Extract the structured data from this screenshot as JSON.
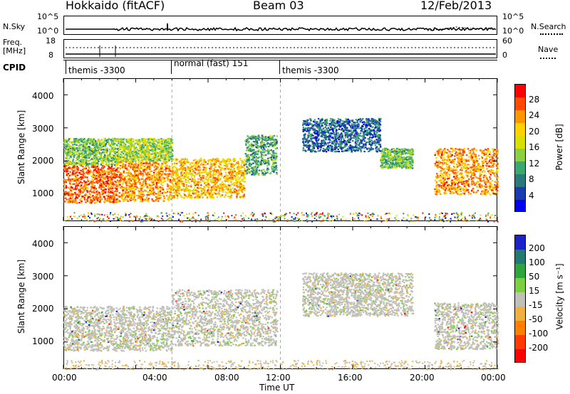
{
  "header": {
    "station": "Hokkaido (fitACF)",
    "beam": "Beam 03",
    "date": "12/Feb/2013"
  },
  "top_panels": {
    "nsky_label": "N.Sky",
    "nsky_ticks": [
      "10^5",
      "10^0"
    ],
    "nsearch_label": "N.Search",
    "nsearch_ticks": [
      "10^5",
      "10^0"
    ],
    "freq_label": "Freq.",
    "freq_unit": "[MHz]",
    "freq_ticks": [
      "18",
      "8"
    ],
    "nave_label": "Nave",
    "nave_ticks": [
      "60",
      "0"
    ],
    "cpid_label": "CPID",
    "cpid_segments": [
      {
        "start_h": 0,
        "end_h": 6,
        "label": "themis -3300"
      },
      {
        "start_h": 6,
        "end_h": 12,
        "label": "normal (fast) 151"
      },
      {
        "start_h": 12,
        "end_h": 24,
        "label": "themis -3300"
      }
    ]
  },
  "axes": {
    "xlabel": "Time UT",
    "xticks": [
      "00:00",
      "04:00",
      "08:00",
      "12:00",
      "16:00",
      "20:00",
      "00:00"
    ],
    "xlim_h": [
      0,
      24
    ],
    "ylabel": "Slant Range [km]",
    "yticks": [
      "1000",
      "2000",
      "3000",
      "4000"
    ],
    "ylim_km": [
      180,
      4500
    ]
  },
  "power_colorbar": {
    "label": "Power [dB]",
    "ticks": [
      "28",
      "24",
      "20",
      "16",
      "12",
      "8",
      "4"
    ],
    "colors": [
      "#ff0000",
      "#ff4a00",
      "#ff9600",
      "#ffd200",
      "#d8e000",
      "#8ad040",
      "#3aa870",
      "#2a7a7a",
      "#1a3ab0",
      "#0000f0"
    ]
  },
  "velocity_colorbar": {
    "label": "Velocity [m s⁻¹]",
    "ticks": [
      "200",
      "100",
      "50",
      "15",
      "-15",
      "-50",
      "-100",
      "-200"
    ],
    "colors": [
      "#1a22c8",
      "#227a70",
      "#2ea63a",
      "#7ad040",
      "#c0c0b8",
      "#f0b040",
      "#ff8000",
      "#ff3a00",
      "#ff0000"
    ]
  },
  "chart_data": [
    {
      "type": "heatmap",
      "title": "",
      "xlabel": "Time UT",
      "ylabel": "Slant Range [km]",
      "quantity": "Power [dB]",
      "xlim_h": [
        0,
        24
      ],
      "ylim_km": [
        180,
        4500
      ],
      "scatter_regions": [
        {
          "t0": 0.0,
          "t1": 3.0,
          "r_lo": 750,
          "r_hi": 1900,
          "val": 26
        },
        {
          "t0": 0.0,
          "t1": 3.0,
          "r_lo": 1900,
          "r_hi": 2700,
          "val": 14
        },
        {
          "t0": 3.0,
          "t1": 6.0,
          "r_lo": 800,
          "r_hi": 2000,
          "val": 24
        },
        {
          "t0": 3.0,
          "t1": 6.0,
          "r_lo": 2000,
          "r_hi": 2700,
          "val": 16
        },
        {
          "t0": 6.0,
          "t1": 10.0,
          "r_lo": 900,
          "r_hi": 2100,
          "val": 22
        },
        {
          "t0": 10.0,
          "t1": 11.8,
          "r_lo": 1600,
          "r_hi": 2800,
          "val": 12
        },
        {
          "t0": 13.2,
          "t1": 17.5,
          "r_lo": 2300,
          "r_hi": 3300,
          "val": 8
        },
        {
          "t0": 17.5,
          "t1": 19.3,
          "r_lo": 1800,
          "r_hi": 2400,
          "val": 14
        },
        {
          "t0": 20.5,
          "t1": 24.0,
          "r_lo": 1000,
          "r_hi": 2400,
          "val": 24
        }
      ]
    },
    {
      "type": "heatmap",
      "title": "",
      "xlabel": "Time UT",
      "ylabel": "Slant Range [km]",
      "quantity": "Velocity [m s⁻¹]",
      "xlim_h": [
        0,
        24
      ],
      "ylim_km": [
        180,
        4500
      ],
      "scatter_regions": [
        {
          "t0": 0.0,
          "t1": 6.0,
          "r_lo": 750,
          "r_hi": 2100,
          "val": 0
        },
        {
          "t0": 6.0,
          "t1": 11.8,
          "r_lo": 900,
          "r_hi": 2600,
          "val": 0
        },
        {
          "t0": 13.2,
          "t1": 19.3,
          "r_lo": 1800,
          "r_hi": 3100,
          "val": 0
        },
        {
          "t0": 20.5,
          "t1": 24.0,
          "r_lo": 800,
          "r_hi": 2200,
          "val": 0
        }
      ]
    }
  ]
}
